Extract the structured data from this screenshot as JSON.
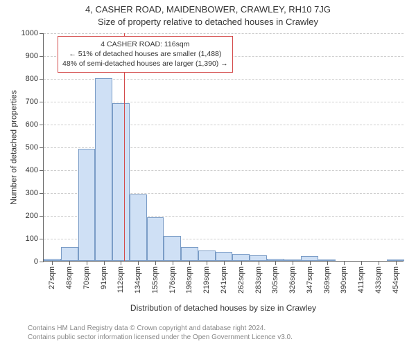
{
  "titles": {
    "line1": "4, CASHER ROAD, MAIDENBOWER, CRAWLEY, RH10 7JG",
    "line2": "Size of property relative to detached houses in Crawley"
  },
  "axes": {
    "ylabel": "Number of detached properties",
    "xlabel": "Distribution of detached houses by size in Crawley",
    "ymin": 0,
    "ymax": 1000,
    "ytick_step": 100,
    "label_fontsize": 12,
    "tick_fontsize": 11,
    "axis_color": "#666666",
    "grid_color": "#cccccc"
  },
  "chart": {
    "type": "histogram",
    "bar_fill": "#cfe0f5",
    "bar_stroke": "#7a9cc6",
    "bar_gap_ratio": 0.0,
    "background_color": "#ffffff",
    "categories": [
      "27sqm",
      "48sqm",
      "70sqm",
      "91sqm",
      "112sqm",
      "134sqm",
      "155sqm",
      "176sqm",
      "198sqm",
      "219sqm",
      "241sqm",
      "262sqm",
      "283sqm",
      "305sqm",
      "326sqm",
      "347sqm",
      "369sqm",
      "390sqm",
      "411sqm",
      "433sqm",
      "454sqm"
    ],
    "values": [
      10,
      60,
      490,
      800,
      690,
      290,
      190,
      110,
      60,
      45,
      40,
      30,
      25,
      10,
      5,
      20,
      5,
      0,
      0,
      0,
      5
    ]
  },
  "marker": {
    "position_sqm": 116,
    "color": "#d34a4a"
  },
  "annotation": {
    "border_color": "#d34a4a",
    "lines": {
      "l1": "4 CASHER ROAD: 116sqm",
      "l2": "← 51% of detached houses are smaller (1,488)",
      "l3": "48% of semi-detached houses are larger (1,390) →"
    }
  },
  "footer": {
    "line1": "Contains HM Land Registry data © Crown copyright and database right 2024.",
    "line2": "Contains public sector information licensed under the Open Government Licence v3.0."
  }
}
